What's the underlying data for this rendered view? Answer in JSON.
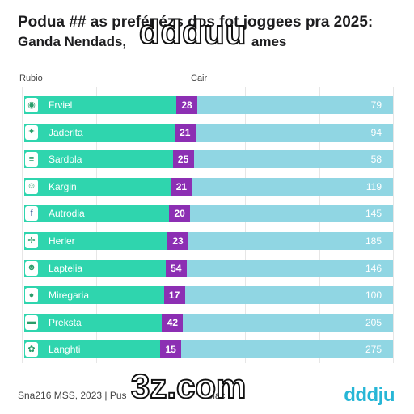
{
  "header": {
    "title_line1": "Podua ## as prefénézs dos fot joggees pra 2025:",
    "title_line2": "Ganda Nendads, ",
    "title_line2_tail": "ames"
  },
  "watermarks": {
    "top": "ddduu",
    "bottom": "3z.com"
  },
  "columns": {
    "left": "Rubio",
    "right": "Cair"
  },
  "footer": {
    "source": "Sna216 MSS, 2023 | Pus",
    "source_tail": "olac",
    "brand": "dddju"
  },
  "colors": {
    "teal": "#2fd5ae",
    "purple": "#8c2fb3",
    "lightblue": "#90d6e3",
    "brand": "#27b6d6"
  },
  "chart_data": {
    "type": "bar",
    "categories": [
      "Frviel",
      "Jaderita",
      "Sardola",
      "Kargin",
      "Autrodia",
      "Herler",
      "Laptelia",
      "Miregaria",
      "Preksta",
      "Langhti"
    ],
    "icons": [
      "logo-badge-icon",
      "flag-icon",
      "flag-icon",
      "smiley-icon",
      "facebook-icon",
      "flag-icon",
      "emoji-icon",
      "flag-icon",
      "flag-icon",
      "bird-icon"
    ],
    "icon_glyphs": [
      "◉",
      "✦",
      "≡",
      "☺",
      "f",
      "✢",
      "☻",
      "●",
      "▬",
      "✿"
    ],
    "series": [
      {
        "values": [
          28,
          21,
          25,
          21,
          20,
          23,
          54,
          17,
          42,
          15
        ]
      },
      {
        "values": [
          79,
          94,
          58,
          119,
          145,
          185,
          146,
          100,
          205,
          275
        ]
      }
    ]
  }
}
